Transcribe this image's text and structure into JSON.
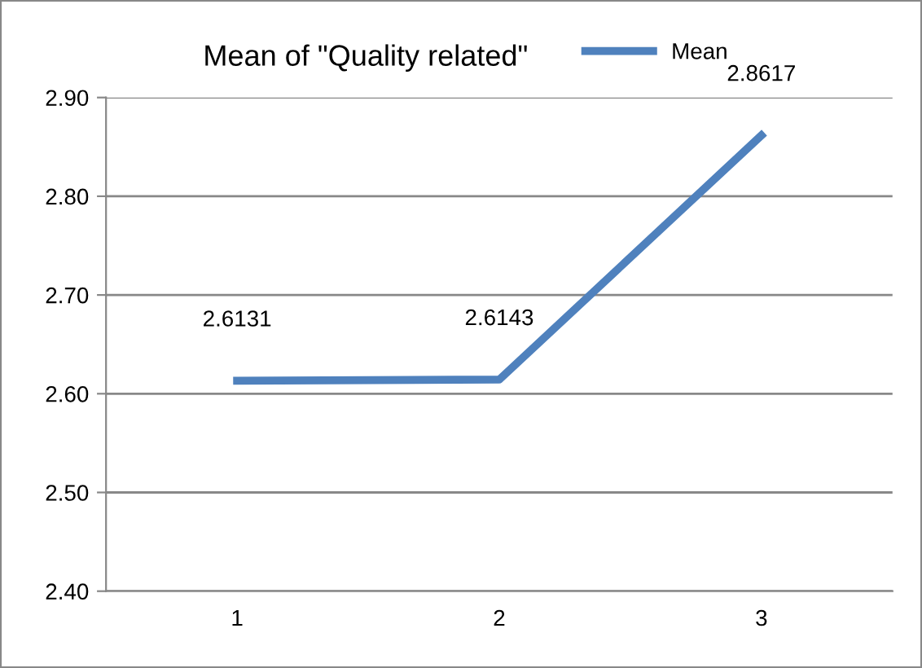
{
  "chart_data": {
    "type": "line",
    "title": "Mean of \"Quality related\"",
    "categories": [
      "1",
      "2",
      "3"
    ],
    "series": [
      {
        "name": "Mean",
        "color": "#4f81bd",
        "values": [
          2.6131,
          2.6143,
          2.8617
        ]
      }
    ],
    "ylim": [
      2.4,
      2.9
    ],
    "yticks": [
      {
        "value": 2.4,
        "label": "2.40"
      },
      {
        "value": 2.5,
        "label": "2.50"
      },
      {
        "value": 2.6,
        "label": "2.60"
      },
      {
        "value": 2.7,
        "label": "2.70"
      },
      {
        "value": 2.8,
        "label": "2.80"
      },
      {
        "value": 2.9,
        "label": "2.90"
      }
    ],
    "grid": "y",
    "legend": "top right",
    "data_labels": true
  }
}
